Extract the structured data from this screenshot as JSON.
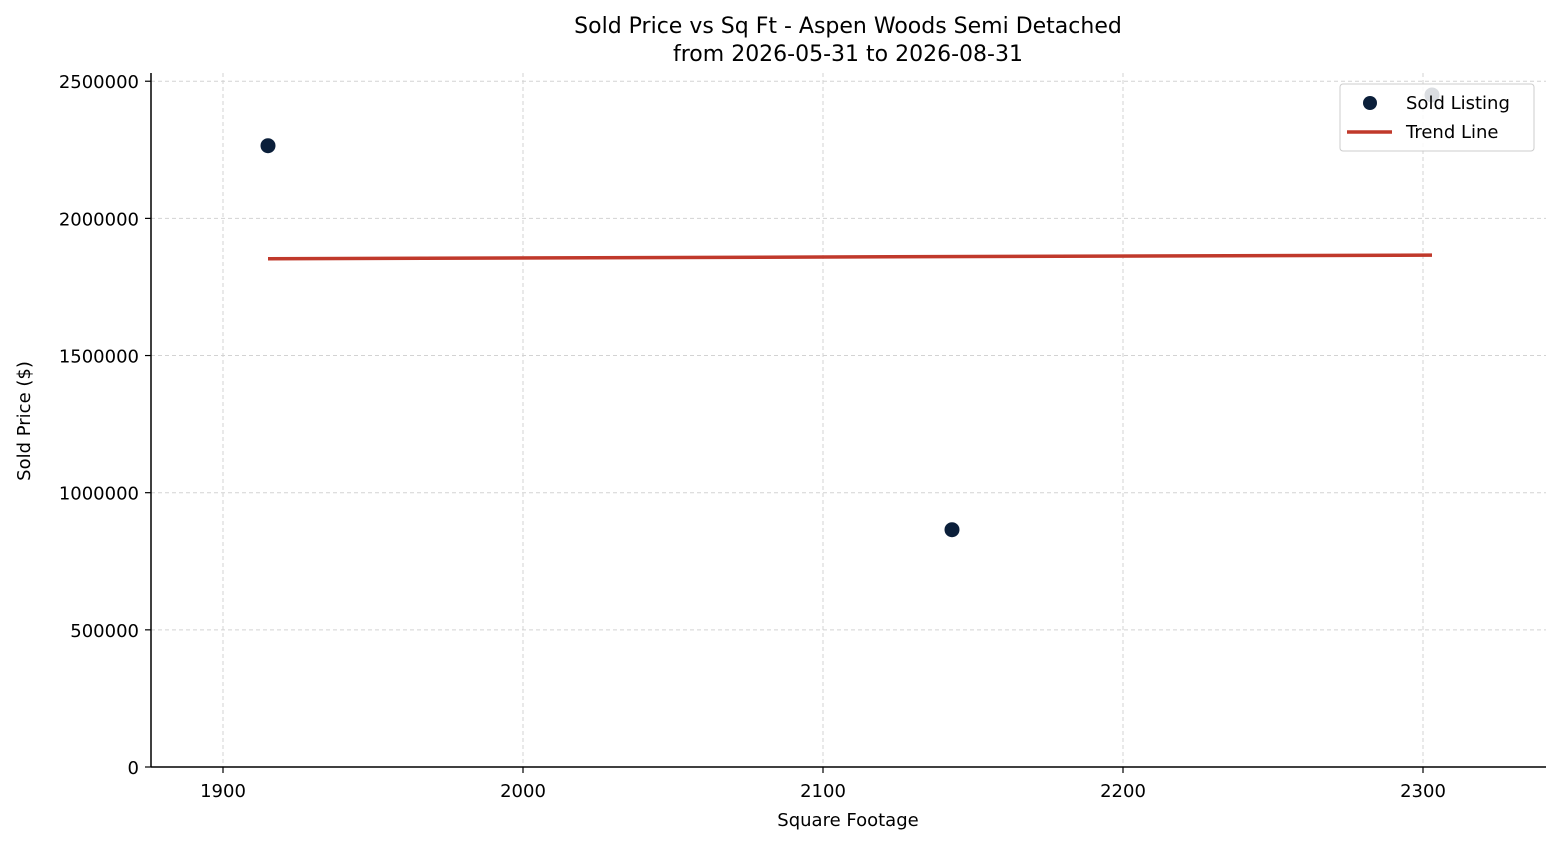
{
  "colors": {
    "point": "#0b1f3a",
    "trend": "#c0392b",
    "grid": "#d3d3d3",
    "legend_border": "#cccccc"
  },
  "chart_data": {
    "type": "scatter",
    "title": "Sold Price vs Sq Ft - Aspen Woods Semi Detached",
    "subtitle": "from 2026-05-31 to 2026-08-31",
    "xlabel": "Square Footage",
    "ylabel": "Sold Price ($)",
    "xlim": [
      1876,
      2341
    ],
    "ylim": [
      0,
      2530000
    ],
    "xticks": [
      1900,
      2000,
      2100,
      2200,
      2300
    ],
    "yticks": [
      0,
      500000,
      1000000,
      1500000,
      2000000,
      2500000
    ],
    "grid": true,
    "legend_position": "top-right",
    "series": [
      {
        "name": "Sold Listing",
        "kind": "scatter",
        "points": [
          {
            "x": 1915,
            "y": 2265000
          },
          {
            "x": 2143,
            "y": 865000
          },
          {
            "x": 2303,
            "y": 2450000
          }
        ]
      },
      {
        "name": "Trend Line",
        "kind": "line",
        "points": [
          {
            "x": 1915,
            "y": 1853000
          },
          {
            "x": 2303,
            "y": 1866000
          }
        ]
      }
    ]
  }
}
